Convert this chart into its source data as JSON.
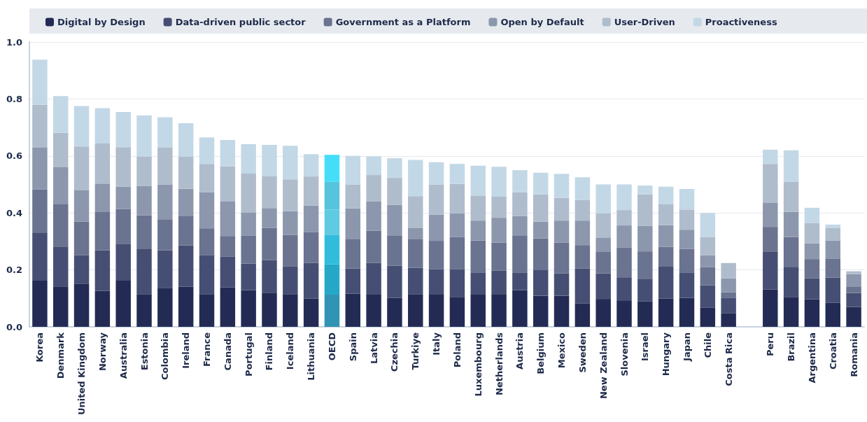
{
  "chart_data": {
    "type": "bar",
    "stacked": true,
    "legend": "top",
    "grid": "y",
    "categories": [
      "Korea",
      "Denmark",
      "United Kingdom",
      "Norway",
      "Australia",
      "Estonia",
      "Colombia",
      "Ireland",
      "France",
      "Canada",
      "Portugal",
      "Finland",
      "Iceland",
      "Lithuania",
      "OECD",
      "Spain",
      "Latvia",
      "Czechia",
      "Turkiye",
      "Italy",
      "Poland",
      "Luxembourg",
      "Netherlands",
      "Austria",
      "Belgium",
      "Mexico",
      "Sweden",
      "New Zealand",
      "Slovenia",
      "Israel",
      "Hungary",
      "Japan",
      "Chile",
      "Costa Rica",
      null,
      "Peru",
      "Brazil",
      "Argentina",
      "Croatia",
      "Romania"
    ],
    "ylim": [
      0,
      1
    ],
    "yticks": [
      {
        "value": 0,
        "label": "0.0"
      },
      0.2,
      0.4,
      0.6,
      0.8,
      {
        "value": 1,
        "label": "1.0"
      }
    ],
    "series": [
      {
        "name": "Digital by Design",
        "color": "#232b55",
        "colors": [
          "#232b55",
          "#232b55",
          "#232b55",
          "#232b55",
          "#232b55",
          "#232b55",
          "#232b55",
          "#232b55",
          "#232b55",
          "#232b55",
          "#232b55",
          "#232b55",
          "#232b55",
          "#232b55",
          "#3194b4",
          "#232b55",
          "#232b55",
          "#232b55",
          "#232b55",
          "#232b55",
          "#232b55",
          "#232b55",
          "#232b55",
          "#232b55",
          "#232b55",
          "#232b55",
          "#232b55",
          "#232b55",
          "#232b55",
          "#232b55",
          "#232b55",
          "#232b55",
          "#232b55",
          "#232b55",
          "#232b55",
          "#232b55",
          "#232b55",
          "#232b55",
          "#232b55",
          "#232b55"
        ],
        "values": [
          0.162,
          0.142,
          0.152,
          0.126,
          0.162,
          0.115,
          0.137,
          0.141,
          0.115,
          0.138,
          0.129,
          0.12,
          0.115,
          0.099,
          0.113,
          0.116,
          0.113,
          0.102,
          0.115,
          0.113,
          0.105,
          0.113,
          0.113,
          0.129,
          0.109,
          0.109,
          0.082,
          0.098,
          0.093,
          0.09,
          0.099,
          0.102,
          0.068,
          0.047,
          null,
          0.131,
          0.105,
          0.097,
          0.084,
          0.07
        ]
      },
      {
        "name": "Data-driven public sector",
        "color": "#464f73",
        "colors": [
          "#464f73",
          "#464f73",
          "#464f73",
          "#464f73",
          "#464f73",
          "#464f73",
          "#464f73",
          "#464f73",
          "#464f73",
          "#464f73",
          "#464f73",
          "#464f73",
          "#464f73",
          "#464f73",
          "#25a8c8",
          "#464f73",
          "#464f73",
          "#464f73",
          "#464f73",
          "#464f73",
          "#464f73",
          "#464f73",
          "#464f73",
          "#464f73",
          "#464f73",
          "#464f73",
          "#464f73",
          "#464f73",
          "#464f73",
          "#464f73",
          "#464f73",
          "#464f73",
          "#464f73",
          "#464f73",
          "#464f73",
          "#464f73",
          "#464f73",
          "#464f73",
          "#464f73",
          "#464f73"
        ],
        "values": [
          0.167,
          0.14,
          0.1,
          0.143,
          0.13,
          0.158,
          0.132,
          0.145,
          0.136,
          0.108,
          0.093,
          0.114,
          0.098,
          0.125,
          0.106,
          0.089,
          0.111,
          0.113,
          0.092,
          0.09,
          0.098,
          0.078,
          0.084,
          0.062,
          0.09,
          0.079,
          0.123,
          0.09,
          0.081,
          0.079,
          0.114,
          0.089,
          0.078,
          0.054,
          null,
          0.132,
          0.104,
          0.073,
          0.089,
          0.049
        ]
      },
      {
        "name": "Government as a Platform",
        "color": "#6a7390",
        "colors": [
          "#6a7390",
          "#6a7390",
          "#6a7390",
          "#6a7390",
          "#6a7390",
          "#6a7390",
          "#6a7390",
          "#6a7390",
          "#6a7390",
          "#6a7390",
          "#6a7390",
          "#6a7390",
          "#6a7390",
          "#6a7390",
          "#31bcdc",
          "#6a7390",
          "#6a7390",
          "#6a7390",
          "#6a7390",
          "#6a7390",
          "#6a7390",
          "#6a7390",
          "#6a7390",
          "#6a7390",
          "#6a7390",
          "#6a7390",
          "#6a7390",
          "#6a7390",
          "#6a7390",
          "#6a7390",
          "#6a7390",
          "#6a7390",
          "#6a7390",
          "#6a7390",
          "#6a7390",
          "#6a7390",
          "#6a7390",
          "#6a7390",
          "#6a7390",
          "#6a7390"
        ],
        "values": [
          0.153,
          0.148,
          0.117,
          0.136,
          0.122,
          0.118,
          0.109,
          0.104,
          0.095,
          0.073,
          0.099,
          0.113,
          0.11,
          0.108,
          0.103,
          0.104,
          0.113,
          0.106,
          0.102,
          0.099,
          0.112,
          0.112,
          0.099,
          0.13,
          0.112,
          0.108,
          0.082,
          0.075,
          0.104,
          0.096,
          0.068,
          0.083,
          0.064,
          0.02,
          null,
          0.088,
          0.107,
          0.068,
          0.067,
          0.021
        ]
      },
      {
        "name": "Open by Default",
        "color": "#8c97ad",
        "colors": [
          "#8c97ad",
          "#8c97ad",
          "#8c97ad",
          "#8c97ad",
          "#8c97ad",
          "#8c97ad",
          "#8c97ad",
          "#8c97ad",
          "#8c97ad",
          "#8c97ad",
          "#8c97ad",
          "#8c97ad",
          "#8c97ad",
          "#8c97ad",
          "#5fcbe2",
          "#8c97ad",
          "#8c97ad",
          "#8c97ad",
          "#8c97ad",
          "#8c97ad",
          "#8c97ad",
          "#8c97ad",
          "#8c97ad",
          "#8c97ad",
          "#8c97ad",
          "#8c97ad",
          "#8c97ad",
          "#8c97ad",
          "#8c97ad",
          "#8c97ad",
          "#8c97ad",
          "#8c97ad",
          "#8c97ad",
          "#8c97ad",
          "#8c97ad",
          "#8c97ad",
          "#8c97ad",
          "#8c97ad",
          "#8c97ad",
          "#8c97ad"
        ],
        "values": [
          0.147,
          0.13,
          0.11,
          0.098,
          0.078,
          0.104,
          0.122,
          0.095,
          0.127,
          0.121,
          0.081,
          0.07,
          0.083,
          0.094,
          0.09,
          0.107,
          0.104,
          0.107,
          0.039,
          0.092,
          0.084,
          0.07,
          0.087,
          0.068,
          0.058,
          0.077,
          0.086,
          0.049,
          0.078,
          0.09,
          0.076,
          0.067,
          0.041,
          0.049,
          null,
          0.084,
          0.088,
          0.055,
          0.063,
          0.045
        ]
      },
      {
        "name": "User-Driven",
        "color": "#afbccc",
        "colors": [
          "#afbccc",
          "#afbccc",
          "#afbccc",
          "#afbccc",
          "#afbccc",
          "#afbccc",
          "#afbccc",
          "#afbccc",
          "#afbccc",
          "#afbccc",
          "#afbccc",
          "#afbccc",
          "#afbccc",
          "#afbccc",
          "#55c4dc",
          "#afbccc",
          "#afbccc",
          "#afbccc",
          "#afbccc",
          "#afbccc",
          "#afbccc",
          "#afbccc",
          "#afbccc",
          "#afbccc",
          "#afbccc",
          "#afbccc",
          "#afbccc",
          "#afbccc",
          "#afbccc",
          "#afbccc",
          "#afbccc",
          "#afbccc",
          "#afbccc",
          "#afbccc",
          "#afbccc",
          "#afbccc",
          "#afbccc",
          "#afbccc",
          "#afbccc",
          "#afbccc"
        ],
        "values": [
          0.151,
          0.121,
          0.154,
          0.141,
          0.139,
          0.102,
          0.129,
          0.112,
          0.099,
          0.124,
          0.136,
          0.111,
          0.112,
          0.102,
          0.097,
          0.084,
          0.092,
          0.095,
          0.111,
          0.106,
          0.103,
          0.088,
          0.074,
          0.083,
          0.096,
          0.08,
          0.073,
          0.086,
          0.054,
          0.11,
          0.073,
          0.071,
          0.064,
          0.054,
          null,
          0.137,
          0.106,
          0.072,
          0.045,
          0.01
        ]
      },
      {
        "name": "Proactiveness",
        "color": "#c3d8e6",
        "colors": [
          "#c3d8e6",
          "#c3d8e6",
          "#c3d8e6",
          "#c3d8e6",
          "#c3d8e6",
          "#c3d8e6",
          "#c3d8e6",
          "#c3d8e6",
          "#c3d8e6",
          "#c3d8e6",
          "#c3d8e6",
          "#c3d8e6",
          "#c3d8e6",
          "#c3d8e6",
          "#45def9",
          "#c3d8e6",
          "#c3d8e6",
          "#c3d8e6",
          "#c3d8e6",
          "#c3d8e6",
          "#c3d8e6",
          "#c3d8e6",
          "#c3d8e6",
          "#c3d8e6",
          "#c3d8e6",
          "#c3d8e6",
          "#c3d8e6",
          "#c3d8e6",
          "#c3d8e6",
          "#c3d8e6",
          "#c3d8e6",
          "#c3d8e6",
          "#c3d8e6",
          "#c3d8e6",
          "#c3d8e6",
          "#c3d8e6",
          "#c3d8e6",
          "#c3d8e6",
          "#c3d8e6",
          "#c3d8e6"
        ],
        "values": [
          0.158,
          0.129,
          0.142,
          0.124,
          0.123,
          0.145,
          0.107,
          0.118,
          0.093,
          0.092,
          0.103,
          0.111,
          0.118,
          0.078,
          0.095,
          0.1,
          0.065,
          0.069,
          0.127,
          0.078,
          0.07,
          0.105,
          0.105,
          0.078,
          0.076,
          0.084,
          0.079,
          0.102,
          0.09,
          0.031,
          0.062,
          0.072,
          0.085,
          0,
          null,
          0.05,
          0.11,
          0.053,
          0.011,
          null
        ]
      }
    ]
  }
}
